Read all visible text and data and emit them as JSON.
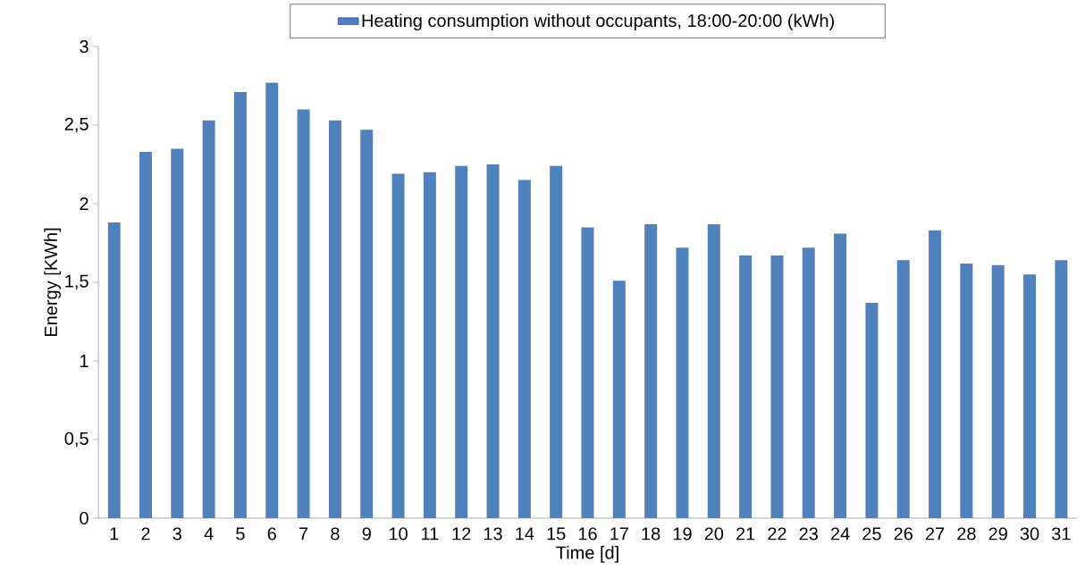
{
  "chart_data": {
    "type": "bar",
    "xlabel": "Time [d]",
    "ylabel": "Energy [KWh]",
    "categories": [
      "1",
      "2",
      "3",
      "4",
      "5",
      "6",
      "7",
      "8",
      "9",
      "10",
      "11",
      "12",
      "13",
      "14",
      "15",
      "16",
      "17",
      "18",
      "19",
      "20",
      "21",
      "22",
      "23",
      "24",
      "25",
      "26",
      "27",
      "28",
      "29",
      "30",
      "31"
    ],
    "series": [
      {
        "name": "Heating consumption without occupants, 18:00-20:00 (kWh)",
        "color": "#4f81bd",
        "values": [
          1.88,
          2.33,
          2.35,
          2.53,
          2.71,
          2.77,
          2.6,
          2.53,
          2.47,
          2.19,
          2.2,
          2.24,
          2.25,
          2.15,
          2.24,
          1.85,
          1.51,
          1.87,
          1.72,
          1.87,
          1.67,
          1.67,
          1.72,
          1.81,
          1.37,
          1.64,
          1.83,
          1.62,
          1.61,
          1.55,
          1.64
        ]
      }
    ],
    "ylim": [
      0,
      3
    ],
    "yticks": [
      0,
      {
        "value": 0.5,
        "label": "0,5"
      },
      1,
      {
        "value": 1.5,
        "label": "1,5"
      },
      2,
      {
        "value": 2.5,
        "label": "2,5"
      },
      3
    ],
    "grid": false,
    "legend": "top"
  }
}
